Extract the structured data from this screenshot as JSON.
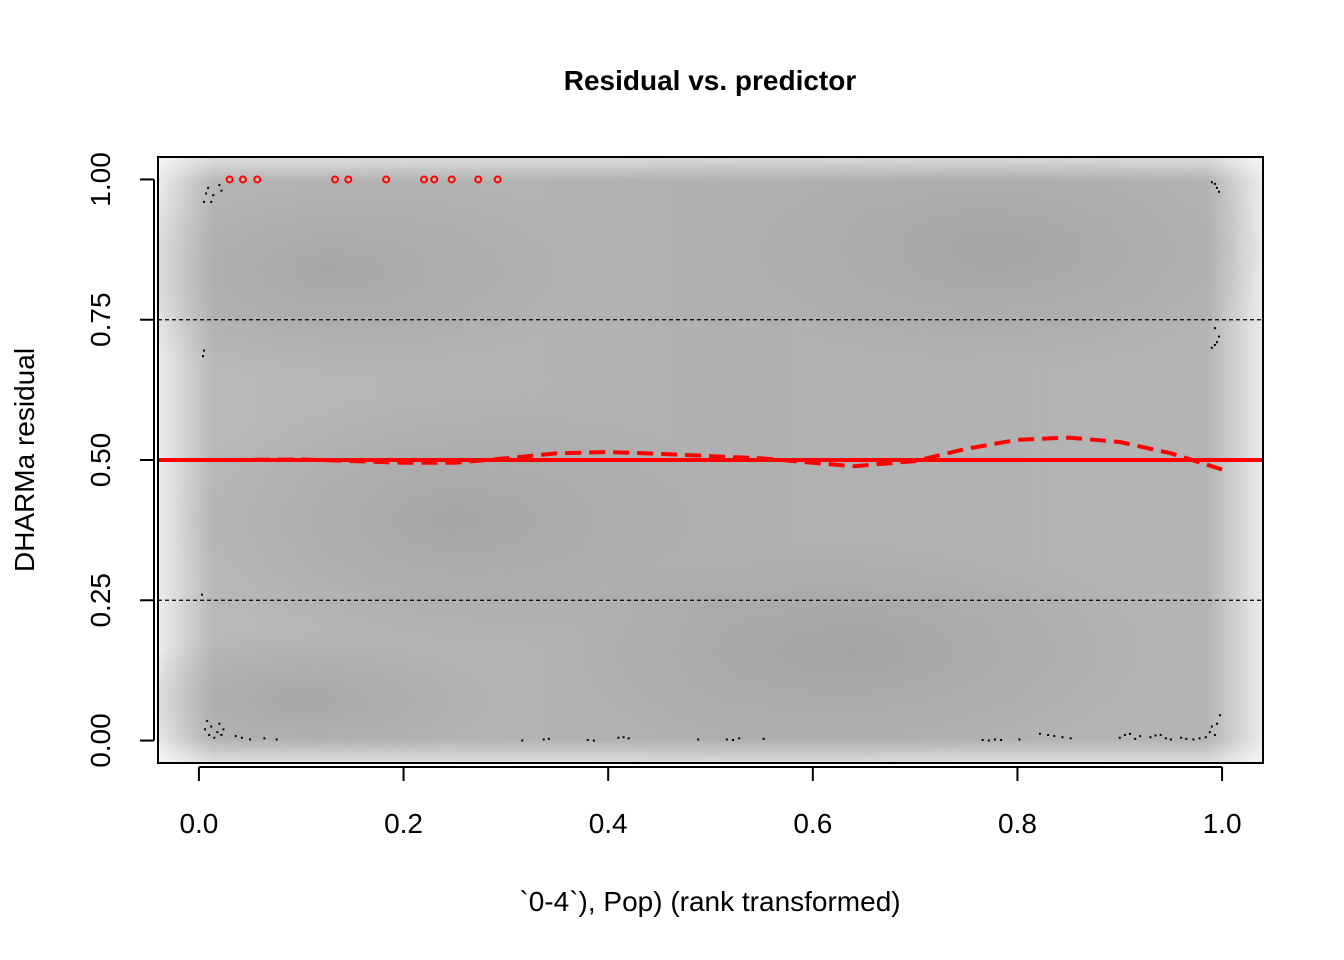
{
  "chart_data": {
    "type": "scatter",
    "title": "Residual vs. predictor",
    "xlabel": "`0-4`), Pop) (rank transformed)",
    "ylabel": "DHARMa residual",
    "xlim": [
      -0.04,
      1.04
    ],
    "ylim": [
      -0.04,
      1.04
    ],
    "x_ticks": [
      "0.0",
      "0.2",
      "0.4",
      "0.6",
      "0.8",
      "1.0"
    ],
    "y_ticks": [
      "0.00",
      "0.25",
      "0.50",
      "0.75",
      "1.00"
    ],
    "background": "grey density shading",
    "reference_lines": [
      {
        "y": 0.25,
        "style": "dashed",
        "color": "#000000"
      },
      {
        "y": 0.5,
        "style": "solid",
        "color": "#ff0000"
      },
      {
        "y": 0.75,
        "style": "dashed",
        "color": "#000000"
      }
    ],
    "series": [
      {
        "kind": "points",
        "color": "#000000",
        "points": [
          [
            0.005,
            0.96
          ],
          [
            0.007,
            0.975
          ],
          [
            0.009,
            0.985
          ],
          [
            0.012,
            0.96
          ],
          [
            0.014,
            0.972
          ],
          [
            0.02,
            0.99
          ],
          [
            0.022,
            0.98
          ],
          [
            0.004,
            0.685
          ],
          [
            0.005,
            0.695
          ],
          [
            0.003,
            0.26
          ],
          [
            0.006,
            0.02
          ],
          [
            0.008,
            0.035
          ],
          [
            0.01,
            0.01
          ],
          [
            0.012,
            0.025
          ],
          [
            0.015,
            0.005
          ],
          [
            0.018,
            0.015
          ],
          [
            0.02,
            0.03
          ],
          [
            0.022,
            0.01
          ],
          [
            0.024,
            0.02
          ],
          [
            0.036,
            0.008
          ],
          [
            0.042,
            0.005
          ],
          [
            0.05,
            0.002
          ],
          [
            0.064,
            0.004
          ],
          [
            0.076,
            0.002
          ],
          [
            0.316,
            0.0
          ],
          [
            0.337,
            0.002
          ],
          [
            0.342,
            0.003
          ],
          [
            0.38,
            0.001
          ],
          [
            0.386,
            0.0
          ],
          [
            0.41,
            0.005
          ],
          [
            0.415,
            0.006
          ],
          [
            0.42,
            0.004
          ],
          [
            0.488,
            0.002
          ],
          [
            0.516,
            0.002
          ],
          [
            0.522,
            0.001
          ],
          [
            0.528,
            0.004
          ],
          [
            0.552,
            0.003
          ],
          [
            0.766,
            0.001
          ],
          [
            0.772,
            0.0
          ],
          [
            0.778,
            0.002
          ],
          [
            0.784,
            0.001
          ],
          [
            0.802,
            0.002
          ],
          [
            0.822,
            0.012
          ],
          [
            0.83,
            0.01
          ],
          [
            0.836,
            0.008
          ],
          [
            0.844,
            0.006
          ],
          [
            0.852,
            0.004
          ],
          [
            0.9,
            0.005
          ],
          [
            0.905,
            0.01
          ],
          [
            0.91,
            0.012
          ],
          [
            0.915,
            0.003
          ],
          [
            0.92,
            0.008
          ],
          [
            0.93,
            0.006
          ],
          [
            0.935,
            0.009
          ],
          [
            0.94,
            0.01
          ],
          [
            0.945,
            0.004
          ],
          [
            0.95,
            0.002
          ],
          [
            0.96,
            0.005
          ],
          [
            0.965,
            0.003
          ],
          [
            0.972,
            0.002
          ],
          [
            0.978,
            0.004
          ],
          [
            0.984,
            0.006
          ],
          [
            0.988,
            0.015
          ],
          [
            0.99,
            0.025
          ],
          [
            0.993,
            0.01
          ],
          [
            0.995,
            0.03
          ],
          [
            0.998,
            0.045
          ],
          [
            0.99,
            0.995
          ],
          [
            0.993,
            0.992
          ],
          [
            0.995,
            0.985
          ],
          [
            0.997,
            0.978
          ],
          [
            0.99,
            0.7
          ],
          [
            0.993,
            0.705
          ],
          [
            0.995,
            0.71
          ],
          [
            0.997,
            0.72
          ],
          [
            0.993,
            0.735
          ]
        ]
      },
      {
        "kind": "outliers",
        "color": "#ff0000",
        "points": [
          [
            0.03,
            1.0
          ],
          [
            0.043,
            1.0
          ],
          [
            0.057,
            1.0
          ],
          [
            0.133,
            1.0
          ],
          [
            0.146,
            1.0
          ],
          [
            0.183,
            1.0
          ],
          [
            0.22,
            1.0
          ],
          [
            0.23,
            1.0
          ],
          [
            0.247,
            1.0
          ],
          [
            0.273,
            1.0
          ],
          [
            0.292,
            1.0
          ]
        ]
      },
      {
        "kind": "smooth",
        "style": "dashed",
        "color": "#ff0000",
        "points": [
          [
            0.03,
            0.5
          ],
          [
            0.1,
            0.501
          ],
          [
            0.2,
            0.495
          ],
          [
            0.25,
            0.495
          ],
          [
            0.3,
            0.503
          ],
          [
            0.35,
            0.512
          ],
          [
            0.4,
            0.514
          ],
          [
            0.45,
            0.511
          ],
          [
            0.5,
            0.507
          ],
          [
            0.55,
            0.503
          ],
          [
            0.6,
            0.495
          ],
          [
            0.64,
            0.489
          ],
          [
            0.7,
            0.498
          ],
          [
            0.75,
            0.52
          ],
          [
            0.8,
            0.536
          ],
          [
            0.85,
            0.54
          ],
          [
            0.9,
            0.532
          ],
          [
            0.95,
            0.512
          ],
          [
            1.0,
            0.483
          ]
        ]
      }
    ]
  }
}
